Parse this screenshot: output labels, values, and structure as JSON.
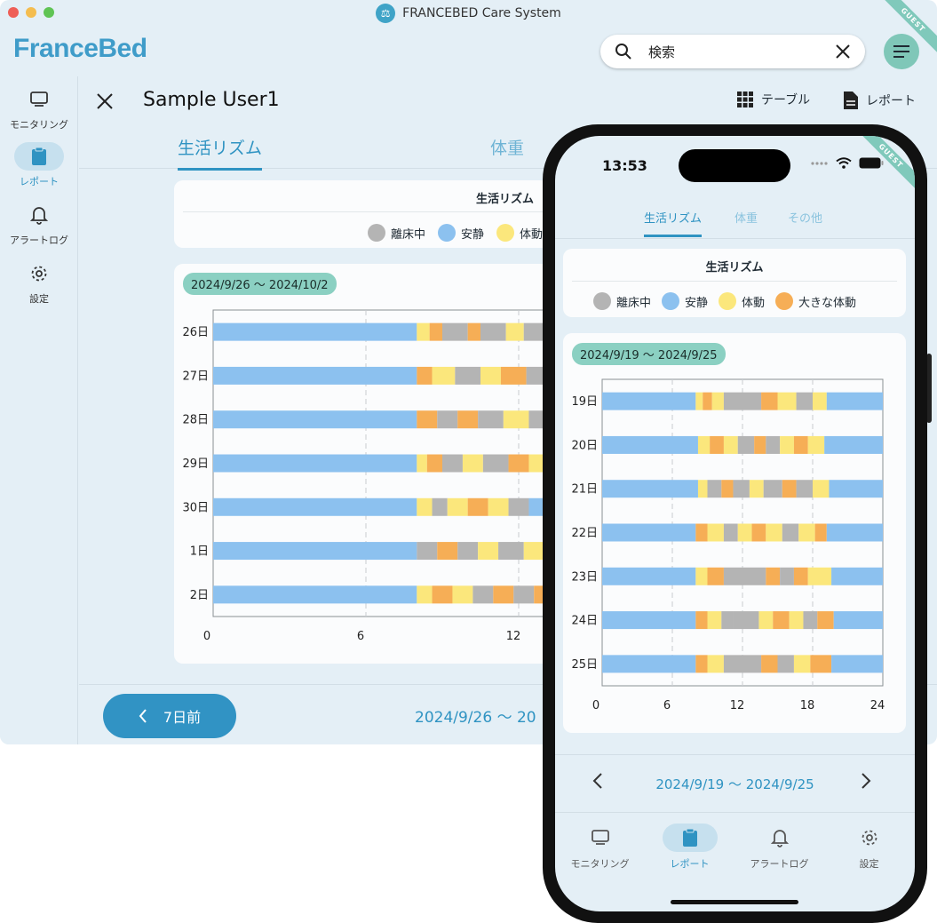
{
  "colors": {
    "out_of_bed": "#b4b4b4",
    "rest": "#8cc1ef",
    "movement": "#fbe77c",
    "large_movement": "#f6ae56",
    "accent": "#2f93c2"
  },
  "window": {
    "title": "FRANCEBED Care System",
    "guest_badge": "GUEST"
  },
  "header": {
    "logo": "FranceBed",
    "search_placeholder": "検索"
  },
  "sidebar": {
    "items": [
      {
        "label": "モニタリング",
        "icon": "monitor-icon"
      },
      {
        "label": "レポート",
        "icon": "clipboard-icon",
        "active": true
      },
      {
        "label": "アラートログ",
        "icon": "bell-icon"
      },
      {
        "label": "設定",
        "icon": "gear-icon"
      }
    ]
  },
  "user_bar": {
    "name": "Sample User1",
    "table_label": "テーブル",
    "report_label": "レポート"
  },
  "tabs": {
    "rhythm": "生活リズム",
    "weight": "体重"
  },
  "legend": {
    "title": "生活リズム",
    "items": [
      "離床中",
      "安静",
      "体動",
      "大きな体動"
    ],
    "desktop_truncated_last": "体動"
  },
  "chart_data": [
    {
      "type": "bar",
      "range_label": "2024/9/26 〜 2024/10/2",
      "categories": [
        "26日",
        "27日",
        "28日",
        "29日",
        "30日",
        "1日",
        "2日"
      ],
      "x_ticks": [
        "0",
        "6",
        "12"
      ],
      "xlim": [
        0,
        24
      ],
      "visible_max_hour": 13.8,
      "segments": [
        [
          [
            0,
            8,
            "rest"
          ],
          [
            8,
            8.5,
            "movement"
          ],
          [
            8.5,
            9,
            "large_movement"
          ],
          [
            9,
            10,
            "out_of_bed"
          ],
          [
            10,
            10.5,
            "large_movement"
          ],
          [
            10.5,
            11.5,
            "out_of_bed"
          ],
          [
            11.5,
            12.2,
            "movement"
          ],
          [
            12.2,
            13,
            "out_of_bed"
          ],
          [
            13,
            13.8,
            "rest"
          ]
        ],
        [
          [
            0,
            8,
            "rest"
          ],
          [
            8,
            8.6,
            "large_movement"
          ],
          [
            8.6,
            9.5,
            "movement"
          ],
          [
            9.5,
            10.5,
            "out_of_bed"
          ],
          [
            10.5,
            11.3,
            "movement"
          ],
          [
            11.3,
            12.3,
            "large_movement"
          ],
          [
            12.3,
            13.2,
            "out_of_bed"
          ],
          [
            13.2,
            13.8,
            "large_movement"
          ]
        ],
        [
          [
            0,
            8,
            "rest"
          ],
          [
            8,
            8.8,
            "large_movement"
          ],
          [
            8.8,
            9.6,
            "out_of_bed"
          ],
          [
            9.6,
            10.4,
            "large_movement"
          ],
          [
            10.4,
            11.4,
            "out_of_bed"
          ],
          [
            11.4,
            12.4,
            "movement"
          ],
          [
            12.4,
            13.8,
            "out_of_bed"
          ]
        ],
        [
          [
            0,
            8,
            "rest"
          ],
          [
            8,
            8.4,
            "movement"
          ],
          [
            8.4,
            9,
            "large_movement"
          ],
          [
            9,
            9.8,
            "out_of_bed"
          ],
          [
            9.8,
            10.6,
            "movement"
          ],
          [
            10.6,
            11.6,
            "out_of_bed"
          ],
          [
            11.6,
            12.4,
            "large_movement"
          ],
          [
            12.4,
            13.8,
            "movement"
          ]
        ],
        [
          [
            0,
            8,
            "rest"
          ],
          [
            8,
            8.6,
            "movement"
          ],
          [
            8.6,
            9.2,
            "out_of_bed"
          ],
          [
            9.2,
            10,
            "movement"
          ],
          [
            10,
            10.8,
            "large_movement"
          ],
          [
            10.8,
            11.6,
            "movement"
          ],
          [
            11.6,
            12.4,
            "out_of_bed"
          ],
          [
            12.4,
            13.8,
            "rest"
          ]
        ],
        [
          [
            0,
            8,
            "rest"
          ],
          [
            8,
            8.8,
            "out_of_bed"
          ],
          [
            8.8,
            9.6,
            "large_movement"
          ],
          [
            9.6,
            10.4,
            "out_of_bed"
          ],
          [
            10.4,
            11.2,
            "movement"
          ],
          [
            11.2,
            12.2,
            "out_of_bed"
          ],
          [
            12.2,
            13,
            "movement"
          ],
          [
            13,
            13.8,
            "rest"
          ]
        ],
        [
          [
            0,
            8,
            "rest"
          ],
          [
            8,
            8.6,
            "movement"
          ],
          [
            8.6,
            9.4,
            "large_movement"
          ],
          [
            9.4,
            10.2,
            "movement"
          ],
          [
            10.2,
            11,
            "out_of_bed"
          ],
          [
            11,
            11.8,
            "large_movement"
          ],
          [
            11.8,
            12.6,
            "out_of_bed"
          ],
          [
            12.6,
            13.8,
            "large_movement"
          ]
        ]
      ]
    },
    {
      "type": "bar",
      "range_label": "2024/9/19 〜 2024/9/25",
      "categories": [
        "19日",
        "20日",
        "21日",
        "22日",
        "23日",
        "24日",
        "25日"
      ],
      "x_ticks": [
        "0",
        "6",
        "12",
        "18",
        "24"
      ],
      "xlim": [
        0,
        24
      ],
      "segments": [
        [
          [
            0,
            8,
            "rest"
          ],
          [
            8,
            8.6,
            "movement"
          ],
          [
            8.6,
            9.4,
            "large_movement"
          ],
          [
            9.4,
            10.4,
            "movement"
          ],
          [
            10.4,
            12,
            "out_of_bed"
          ],
          [
            12,
            13.6,
            "out_of_bed"
          ],
          [
            13.6,
            15,
            "large_movement"
          ],
          [
            15,
            16.6,
            "movement"
          ],
          [
            16.6,
            18,
            "out_of_bed"
          ],
          [
            18,
            19.2,
            "movement"
          ],
          [
            19.2,
            24,
            "rest"
          ]
        ],
        [
          [
            0,
            8.2,
            "rest"
          ],
          [
            8.2,
            9.2,
            "movement"
          ],
          [
            9.2,
            10.4,
            "large_movement"
          ],
          [
            10.4,
            11.6,
            "movement"
          ],
          [
            11.6,
            13,
            "out_of_bed"
          ],
          [
            13,
            14,
            "large_movement"
          ],
          [
            14,
            15.2,
            "out_of_bed"
          ],
          [
            15.2,
            16.4,
            "movement"
          ],
          [
            16.4,
            17.6,
            "large_movement"
          ],
          [
            17.6,
            19,
            "movement"
          ],
          [
            19,
            24,
            "rest"
          ]
        ],
        [
          [
            0,
            8.2,
            "rest"
          ],
          [
            8.2,
            9,
            "movement"
          ],
          [
            9,
            10.2,
            "out_of_bed"
          ],
          [
            10.2,
            11.2,
            "large_movement"
          ],
          [
            11.2,
            12.6,
            "out_of_bed"
          ],
          [
            12.6,
            13.8,
            "movement"
          ],
          [
            13.8,
            15.4,
            "out_of_bed"
          ],
          [
            15.4,
            16.6,
            "large_movement"
          ],
          [
            16.6,
            18,
            "out_of_bed"
          ],
          [
            18,
            19.4,
            "movement"
          ],
          [
            19.4,
            24,
            "rest"
          ]
        ],
        [
          [
            0,
            8,
            "rest"
          ],
          [
            8,
            9,
            "large_movement"
          ],
          [
            9,
            10.4,
            "movement"
          ],
          [
            10.4,
            11.6,
            "out_of_bed"
          ],
          [
            11.6,
            12.8,
            "movement"
          ],
          [
            12.8,
            14,
            "large_movement"
          ],
          [
            14,
            15.4,
            "movement"
          ],
          [
            15.4,
            16.8,
            "out_of_bed"
          ],
          [
            16.8,
            18.2,
            "movement"
          ],
          [
            18.2,
            19.2,
            "large_movement"
          ],
          [
            19.2,
            24,
            "rest"
          ]
        ],
        [
          [
            0,
            8,
            "rest"
          ],
          [
            8,
            9,
            "movement"
          ],
          [
            9,
            10.4,
            "large_movement"
          ],
          [
            10.4,
            12,
            "out_of_bed"
          ],
          [
            12,
            14,
            "out_of_bed"
          ],
          [
            14,
            15.2,
            "large_movement"
          ],
          [
            15.2,
            16.4,
            "out_of_bed"
          ],
          [
            16.4,
            17.6,
            "large_movement"
          ],
          [
            17.6,
            19.6,
            "movement"
          ],
          [
            19.6,
            24,
            "rest"
          ]
        ],
        [
          [
            0,
            8,
            "rest"
          ],
          [
            8,
            9,
            "large_movement"
          ],
          [
            9,
            10.2,
            "movement"
          ],
          [
            10.2,
            11.2,
            "out_of_bed"
          ],
          [
            11.2,
            13.4,
            "out_of_bed"
          ],
          [
            13.4,
            14.6,
            "movement"
          ],
          [
            14.6,
            16,
            "large_movement"
          ],
          [
            16,
            17.2,
            "movement"
          ],
          [
            17.2,
            18.4,
            "out_of_bed"
          ],
          [
            18.4,
            19.8,
            "large_movement"
          ],
          [
            19.8,
            24,
            "rest"
          ]
        ],
        [
          [
            0,
            8,
            "rest"
          ],
          [
            8,
            9,
            "large_movement"
          ],
          [
            9,
            10.4,
            "movement"
          ],
          [
            10.4,
            12,
            "out_of_bed"
          ],
          [
            12,
            13.6,
            "out_of_bed"
          ],
          [
            13.6,
            15,
            "large_movement"
          ],
          [
            15,
            16.4,
            "out_of_bed"
          ],
          [
            16.4,
            17.8,
            "movement"
          ],
          [
            17.8,
            19.6,
            "large_movement"
          ],
          [
            19.6,
            24,
            "rest"
          ]
        ]
      ]
    }
  ],
  "footer": {
    "prev_label": "7日前",
    "range_label": "2024/9/26 〜 20"
  },
  "phone": {
    "time": "13:53",
    "guest_badge": "GUEST",
    "tabs": [
      "生活リズム",
      "体重",
      "その他"
    ],
    "nav_range": "2024/9/19 〜 2024/9/25",
    "bottom_nav": [
      {
        "label": "モニタリング",
        "icon": "monitor-icon"
      },
      {
        "label": "レポート",
        "icon": "clipboard-icon",
        "active": true
      },
      {
        "label": "アラートログ",
        "icon": "bell-icon"
      },
      {
        "label": "設定",
        "icon": "gear-icon"
      }
    ]
  }
}
